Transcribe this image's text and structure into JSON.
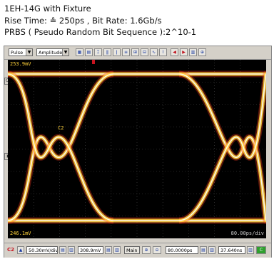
{
  "caption": {
    "line1": "1EH-14G with Fixture",
    "line2": "Rise Time: ≗ 250ps , Bit Rate: 1.6Gb/s",
    "line3": "PRBS ( Pseudo Random Bit Sequence ):2^10-1"
  },
  "toolbar": {
    "mode_select": "Pulse",
    "measure_select": "Amplitude",
    "icons": [
      "grid-icon",
      "grid-icon",
      "cursor-icon",
      "marker-icon",
      "marker-icon",
      "scale-icon",
      "measure-icon",
      "measure-icon",
      "trace-icon",
      "trace-icon",
      "arrow-left-icon",
      "arrow-right-icon",
      "histogram-icon",
      "zoom-icon"
    ]
  },
  "screen": {
    "top_level": "253.9mV",
    "bottom_level": "246.1mV",
    "time_right": "80.00ps/div",
    "channel_label": "C2",
    "trace_color": "#ffd23a",
    "grid_color": "#4a4a4a"
  },
  "status": {
    "channel": "C2",
    "volts_div": "50.30mV/div",
    "offset": "308.9mV",
    "tab_main": "Main",
    "time_div": "80.0000ps",
    "delay": "37.640ns",
    "channel_indicator_color": "#2fa02f"
  }
}
